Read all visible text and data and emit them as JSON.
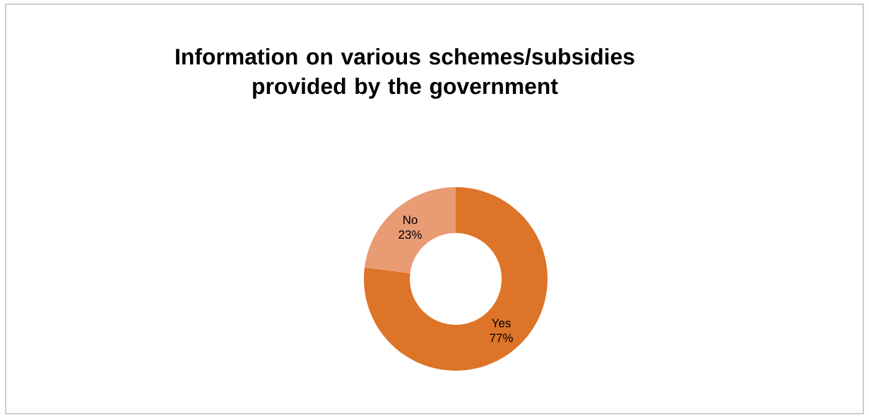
{
  "chart_data": {
    "type": "donut",
    "title": "Information on various schemes/subsidies provided by the government",
    "categories": [
      "Yes",
      "No"
    ],
    "values": [
      77,
      23
    ],
    "value_labels": [
      "77%",
      "23%"
    ],
    "colors": [
      "#dd7428",
      "#e99b74"
    ]
  }
}
